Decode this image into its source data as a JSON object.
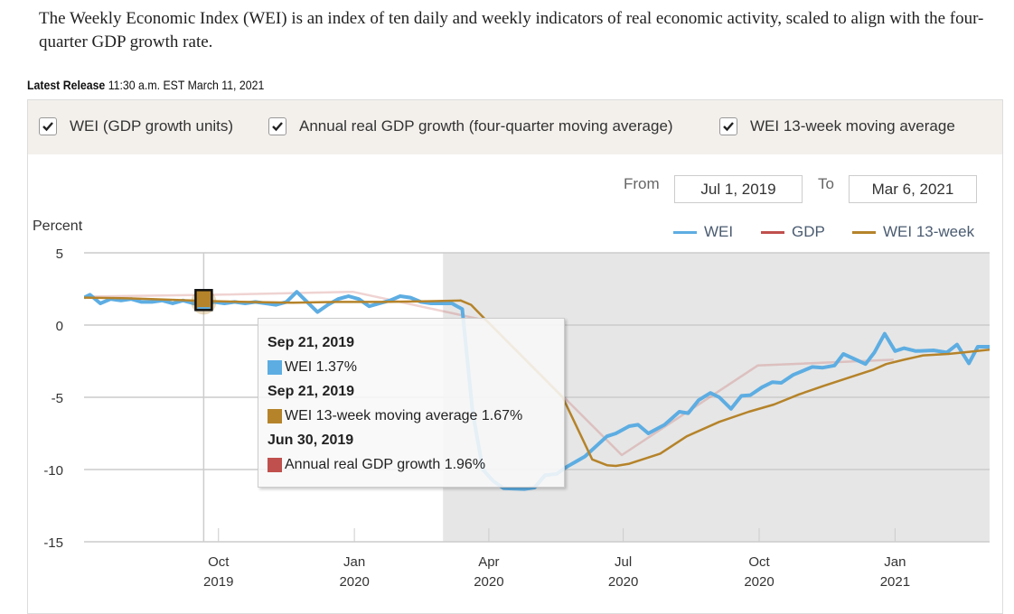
{
  "intro": "The Weekly Economic Index (WEI) is an index of ten daily and weekly indicators of real economic activity, scaled to align with the four-quarter GDP growth rate.",
  "release": {
    "label": "Latest Release",
    "value": "11:30 a.m. EST March 11, 2021"
  },
  "filters": [
    {
      "label": "WEI (GDP growth units)",
      "checked": true
    },
    {
      "label": "Annual real GDP growth (four-quarter moving average)",
      "checked": true
    },
    {
      "label": "WEI 13-week moving average",
      "checked": true
    }
  ],
  "range": {
    "from_label": "From",
    "from_value": "Jul 1, 2019",
    "to_label": "To",
    "to_value": "Mar 6, 2021"
  },
  "tooltip": {
    "rows": [
      {
        "date": "Sep 21, 2019",
        "label": "WEI 1.37%",
        "color": "#5dade2"
      },
      {
        "date": "Sep 21, 2019",
        "label": "WEI 13-week moving average 1.67%",
        "color": "#b5832a"
      },
      {
        "date": "Jun 30, 2019",
        "label": "Annual real GDP growth 1.96%",
        "color": "#c0504d"
      }
    ]
  },
  "chart_data": {
    "type": "line",
    "ylabel": "Percent",
    "ylim": [
      -15,
      5
    ],
    "yticks": [
      "5",
      "0",
      "-5",
      "-10",
      "-15"
    ],
    "ytick_values": [
      5,
      0,
      -5,
      -10,
      -15
    ],
    "xlim": [
      "2019-07-02",
      "2021-03-06"
    ],
    "xticks": [
      {
        "date": "2019-10-01",
        "line1": "Oct",
        "line2": "2019"
      },
      {
        "date": "2020-01-01",
        "line1": "Jan",
        "line2": "2020"
      },
      {
        "date": "2020-04-01",
        "line1": "Apr",
        "line2": "2020"
      },
      {
        "date": "2020-07-01",
        "line1": "Jul",
        "line2": "2020"
      },
      {
        "date": "2020-10-01",
        "line1": "Oct",
        "line2": "2020"
      },
      {
        "date": "2021-01-01",
        "line1": "Jan",
        "line2": "2021"
      }
    ],
    "shaded_from": "2020-03-01",
    "hover_date": "2019-09-21",
    "legend": [
      {
        "name": "WEI",
        "color": "#5dade2"
      },
      {
        "name": "GDP",
        "color": "#c0504d"
      },
      {
        "name": "WEI 13-week",
        "color": "#b5832a"
      }
    ],
    "series": [
      {
        "name": "WEI",
        "color": "#5dade2",
        "points": [
          [
            "2019-07-02",
            1.9
          ],
          [
            "2019-07-06",
            2.1
          ],
          [
            "2019-07-13",
            1.5
          ],
          [
            "2019-07-20",
            1.8
          ],
          [
            "2019-07-27",
            1.7
          ],
          [
            "2019-08-03",
            1.8
          ],
          [
            "2019-08-10",
            1.6
          ],
          [
            "2019-08-17",
            1.6
          ],
          [
            "2019-08-24",
            1.7
          ],
          [
            "2019-08-31",
            1.5
          ],
          [
            "2019-09-07",
            1.7
          ],
          [
            "2019-09-14",
            1.5
          ],
          [
            "2019-09-21",
            1.37
          ],
          [
            "2019-09-28",
            1.6
          ],
          [
            "2019-10-05",
            1.5
          ],
          [
            "2019-10-12",
            1.6
          ],
          [
            "2019-10-19",
            1.5
          ],
          [
            "2019-10-26",
            1.6
          ],
          [
            "2019-11-02",
            1.5
          ],
          [
            "2019-11-09",
            1.4
          ],
          [
            "2019-11-16",
            1.6
          ],
          [
            "2019-11-23",
            2.3
          ],
          [
            "2019-11-30",
            1.6
          ],
          [
            "2019-12-07",
            0.9
          ],
          [
            "2019-12-14",
            1.4
          ],
          [
            "2019-12-21",
            1.8
          ],
          [
            "2019-12-28",
            2.0
          ],
          [
            "2020-01-04",
            1.8
          ],
          [
            "2020-01-11",
            1.3
          ],
          [
            "2020-01-18",
            1.5
          ],
          [
            "2020-01-25",
            1.7
          ],
          [
            "2020-02-01",
            2.0
          ],
          [
            "2020-02-08",
            1.9
          ],
          [
            "2020-02-15",
            1.6
          ],
          [
            "2020-02-22",
            1.5
          ],
          [
            "2020-02-29",
            1.5
          ],
          [
            "2020-03-07",
            1.5
          ],
          [
            "2020-03-14",
            1.1
          ],
          [
            "2020-03-21",
            -6.0
          ],
          [
            "2020-03-28",
            -10.0
          ],
          [
            "2020-04-04",
            -10.8
          ],
          [
            "2020-04-11",
            -11.3
          ],
          [
            "2020-04-25",
            -11.35
          ],
          [
            "2020-05-02",
            -11.25
          ],
          [
            "2020-05-09",
            -10.4
          ],
          [
            "2020-05-17",
            -10.3
          ],
          [
            "2020-05-24",
            -9.8
          ],
          [
            "2020-06-05",
            -9.1
          ],
          [
            "2020-06-20",
            -7.7
          ],
          [
            "2020-06-26",
            -7.5
          ],
          [
            "2020-07-05",
            -7.0
          ],
          [
            "2020-07-11",
            -6.9
          ],
          [
            "2020-07-18",
            -7.5
          ],
          [
            "2020-07-29",
            -6.9
          ],
          [
            "2020-08-08",
            -6.0
          ],
          [
            "2020-08-14",
            -6.1
          ],
          [
            "2020-08-21",
            -5.2
          ],
          [
            "2020-08-29",
            -4.7
          ],
          [
            "2020-09-04",
            -5.0
          ],
          [
            "2020-09-12",
            -5.8
          ],
          [
            "2020-09-19",
            -4.9
          ],
          [
            "2020-09-25",
            -4.85
          ],
          [
            "2020-10-03",
            -4.3
          ],
          [
            "2020-10-10",
            -3.95
          ],
          [
            "2020-10-16",
            -4.0
          ],
          [
            "2020-10-24",
            -3.45
          ],
          [
            "2020-11-06",
            -2.9
          ],
          [
            "2020-11-13",
            -2.95
          ],
          [
            "2020-11-21",
            -2.8
          ],
          [
            "2020-11-27",
            -2.0
          ],
          [
            "2020-12-12",
            -2.7
          ],
          [
            "2020-12-18",
            -1.9
          ],
          [
            "2020-12-25",
            -0.6
          ],
          [
            "2021-01-01",
            -1.8
          ],
          [
            "2021-01-07",
            -1.6
          ],
          [
            "2021-01-15",
            -1.8
          ],
          [
            "2021-01-27",
            -1.75
          ],
          [
            "2021-02-05",
            -1.9
          ],
          [
            "2021-02-12",
            -1.35
          ],
          [
            "2021-02-20",
            -2.65
          ],
          [
            "2021-02-26",
            -1.5
          ],
          [
            "2021-03-06",
            -1.5
          ]
        ]
      },
      {
        "name": "GDP",
        "color": "#c0504d",
        "points": [
          [
            "2019-06-30",
            1.96
          ],
          [
            "2019-09-30",
            2.1
          ],
          [
            "2019-12-31",
            2.3
          ],
          [
            "2020-03-31",
            0.3
          ],
          [
            "2020-06-30",
            -9.0
          ],
          [
            "2020-09-30",
            -2.8
          ],
          [
            "2020-12-31",
            -2.4
          ]
        ]
      },
      {
        "name": "WEI 13-week",
        "color": "#b5832a",
        "points": [
          [
            "2019-07-02",
            1.9
          ],
          [
            "2019-08-01",
            1.85
          ],
          [
            "2019-09-21",
            1.67
          ],
          [
            "2019-10-20",
            1.6
          ],
          [
            "2019-11-20",
            1.55
          ],
          [
            "2019-12-20",
            1.6
          ],
          [
            "2020-01-20",
            1.6
          ],
          [
            "2020-02-20",
            1.65
          ],
          [
            "2020-03-13",
            1.7
          ],
          [
            "2020-03-20",
            1.4
          ],
          [
            "2020-03-29",
            0.45
          ],
          [
            "2020-05-21",
            -5.0
          ],
          [
            "2020-06-10",
            -9.3
          ],
          [
            "2020-06-20",
            -9.7
          ],
          [
            "2020-06-26",
            -9.75
          ],
          [
            "2020-07-05",
            -9.6
          ],
          [
            "2020-07-26",
            -8.9
          ],
          [
            "2020-08-13",
            -7.7
          ],
          [
            "2020-09-04",
            -6.7
          ],
          [
            "2020-09-24",
            -6.0
          ],
          [
            "2020-10-11",
            -5.5
          ],
          [
            "2020-10-28",
            -4.8
          ],
          [
            "2020-11-14",
            -4.2
          ],
          [
            "2020-12-02",
            -3.6
          ],
          [
            "2020-12-17",
            -3.1
          ],
          [
            "2020-12-26",
            -2.7
          ],
          [
            "2021-01-07",
            -2.4
          ],
          [
            "2021-01-20",
            -2.1
          ],
          [
            "2021-02-06",
            -2.0
          ],
          [
            "2021-02-16",
            -1.9
          ],
          [
            "2021-03-06",
            -1.7
          ]
        ]
      }
    ]
  }
}
